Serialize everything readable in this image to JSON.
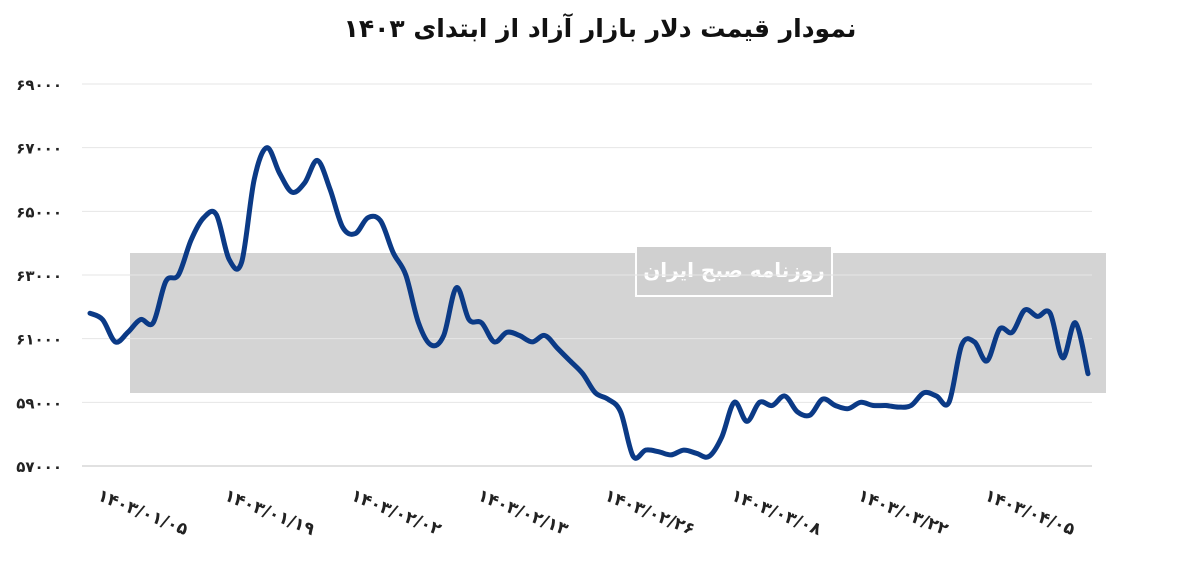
{
  "chart_data": {
    "type": "line",
    "title": "نمودار قیمت دلار بازار آزاد از ابتدای ۱۴۰۳",
    "xlabel": "",
    "ylabel": "",
    "ylim": [
      57000,
      69000
    ],
    "y_ticks": [
      57000,
      59000,
      61000,
      63000,
      65000,
      67000,
      69000
    ],
    "y_tick_labels": [
      "۵۷۰۰۰",
      "۵۹۰۰۰",
      "۶۱۰۰۰",
      "۶۳۰۰۰",
      "۶۵۰۰۰",
      "۶۷۰۰۰",
      "۶۹۰۰۰"
    ],
    "x_tick_labels": [
      "۱۴۰۳/۰۱/۰۵",
      "۱۴۰۳/۰۱/۱۹",
      "۱۴۰۳/۰۲/۰۲",
      "۱۴۰۳/۰۲/۱۳",
      "۱۴۰۳/۰۲/۲۶",
      "۱۴۰۳/۰۳/۰۸",
      "۱۴۰۳/۰۳/۲۲",
      "۱۴۰۳/۰۴/۰۵"
    ],
    "grid": true,
    "legend": "none",
    "series": [
      {
        "color": "#0b3a86",
        "values": [
          61800,
          61600,
          60900,
          61200,
          61600,
          61500,
          62800,
          63000,
          64100,
          64800,
          64900,
          63500,
          63400,
          66000,
          67000,
          66200,
          65600,
          65900,
          66600,
          65700,
          64500,
          64300,
          64800,
          64700,
          63700,
          63000,
          61500,
          60800,
          61100,
          62600,
          61600,
          61500,
          60900,
          61200,
          61100,
          60900,
          61100,
          60700,
          60300,
          59900,
          59300,
          59100,
          58700,
          57300,
          57500,
          57450,
          57350,
          57500,
          57400,
          57300,
          57900,
          59000,
          58400,
          59000,
          58900,
          59200,
          58700,
          58600,
          59100,
          58900,
          58800,
          59000,
          58900,
          58900,
          58850,
          58900,
          59300,
          59200,
          59000,
          60800,
          60900,
          60300,
          61300,
          61200,
          61900,
          61700,
          61800,
          60400,
          61500,
          59900
        ]
      }
    ]
  },
  "watermark": {
    "text": "روزنامه صبح ایران"
  }
}
